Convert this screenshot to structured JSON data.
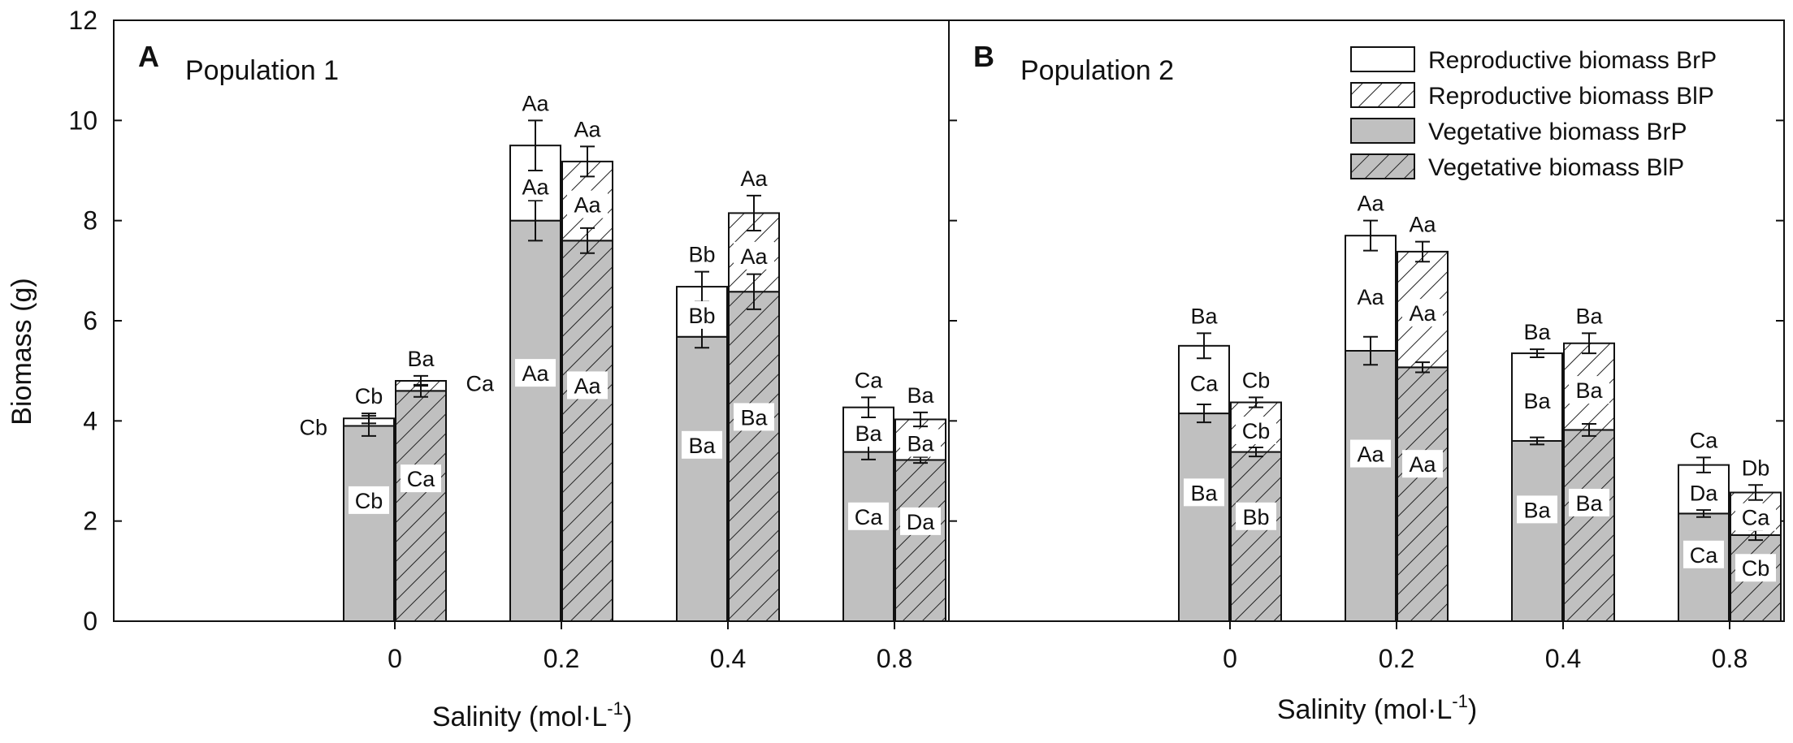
{
  "chart_data": {
    "type": "bar",
    "stacked": true,
    "ylabel": "Biomass (g)",
    "xlabel_main": "Salinity (mol·L",
    "xlabel_sup": "-1",
    "xlabel_close": ")",
    "ylim": [
      0,
      12
    ],
    "yticks": [
      "0",
      "2",
      "4",
      "6",
      "8",
      "10",
      "12"
    ],
    "categories": [
      "0",
      "0.2",
      "0.4",
      "0.8"
    ],
    "legend": [
      {
        "name": "Reproductive biomass BrP",
        "style": "white"
      },
      {
        "name": "Reproductive biomass BlP",
        "style": "white-hatch"
      },
      {
        "name": "Vegetative biomass BrP",
        "style": "gray"
      },
      {
        "name": "Vegetative biomass BlP",
        "style": "gray-hatch"
      }
    ],
    "panels": [
      {
        "letter": "A",
        "title": "Population 1",
        "groups": [
          {
            "category": "0",
            "brp": {
              "veg": 3.9,
              "veg_err": 0.2,
              "total": 4.05,
              "total_err": 0.1,
              "veg_label": "Cb",
              "repro_label": "",
              "top_label": "Cb",
              "side_label": true
            },
            "blp": {
              "veg": 4.6,
              "veg_err": 0.12,
              "total": 4.8,
              "total_err": 0.1,
              "veg_label": "Ca",
              "repro_label": "",
              "top_label": "Ba"
            }
          },
          {
            "category": "0.2",
            "brp": {
              "veg": 8.0,
              "veg_err": 0.4,
              "total": 9.5,
              "total_err": 0.5,
              "veg_label": "Aa",
              "repro_label": "Aa",
              "top_label": "Aa",
              "outside_label": "Ca"
            },
            "blp": {
              "veg": 7.6,
              "veg_err": 0.25,
              "total": 9.18,
              "total_err": 0.3,
              "veg_label": "Aa",
              "repro_label": "Aa",
              "top_label": "Aa"
            }
          },
          {
            "category": "0.4",
            "brp": {
              "veg": 5.68,
              "veg_err": 0.22,
              "total": 6.68,
              "total_err": 0.3,
              "veg_label": "Ba",
              "repro_label": "Bb",
              "top_label": "Bb"
            },
            "blp": {
              "veg": 6.58,
              "veg_err": 0.35,
              "total": 8.15,
              "total_err": 0.35,
              "veg_label": "Ba",
              "repro_label": "Aa",
              "top_label": "Aa"
            }
          },
          {
            "category": "0.8",
            "brp": {
              "veg": 3.38,
              "veg_err": 0.15,
              "total": 4.27,
              "total_err": 0.2,
              "veg_label": "Ca",
              "repro_label": "Ba",
              "top_label": "Ca"
            },
            "blp": {
              "veg": 3.22,
              "veg_err": 0.06,
              "total": 4.03,
              "total_err": 0.14,
              "veg_label": "Da",
              "repro_label": "Ba",
              "top_label": "Ba"
            }
          }
        ]
      },
      {
        "letter": "B",
        "title": "Population 2",
        "groups": [
          {
            "category": "0",
            "brp": {
              "veg": 4.15,
              "veg_err": 0.18,
              "total": 5.5,
              "total_err": 0.25,
              "veg_label": "Ba",
              "repro_label": "Ca",
              "top_label": "Ba"
            },
            "blp": {
              "veg": 3.38,
              "veg_err": 0.09,
              "total": 4.37,
              "total_err": 0.1,
              "veg_label": "Bb",
              "repro_label": "Cb",
              "top_label": "Cb"
            }
          },
          {
            "category": "0.2",
            "brp": {
              "veg": 5.4,
              "veg_err": 0.28,
              "total": 7.7,
              "total_err": 0.3,
              "veg_label": "Aa",
              "repro_label": "Aa",
              "top_label": "Aa"
            },
            "blp": {
              "veg": 5.07,
              "veg_err": 0.1,
              "total": 7.38,
              "total_err": 0.2,
              "veg_label": "Aa",
              "repro_label": "Aa",
              "top_label": "Aa"
            }
          },
          {
            "category": "0.4",
            "brp": {
              "veg": 3.6,
              "veg_err": 0.07,
              "total": 5.35,
              "total_err": 0.08,
              "veg_label": "Ba",
              "repro_label": "Ba",
              "top_label": "Ba"
            },
            "blp": {
              "veg": 3.82,
              "veg_err": 0.12,
              "total": 5.55,
              "total_err": 0.2,
              "veg_label": "Ba",
              "repro_label": "Ba",
              "top_label": "Ba"
            }
          },
          {
            "category": "0.8",
            "brp": {
              "veg": 2.15,
              "veg_err": 0.07,
              "total": 3.12,
              "total_err": 0.15,
              "veg_label": "Ca",
              "repro_label": "Da",
              "top_label": "Ca"
            },
            "blp": {
              "veg": 1.72,
              "veg_err": 0.1,
              "total": 2.57,
              "total_err": 0.15,
              "veg_label": "Cb",
              "repro_label": "Ca",
              "top_label": "Db"
            }
          }
        ]
      }
    ]
  }
}
